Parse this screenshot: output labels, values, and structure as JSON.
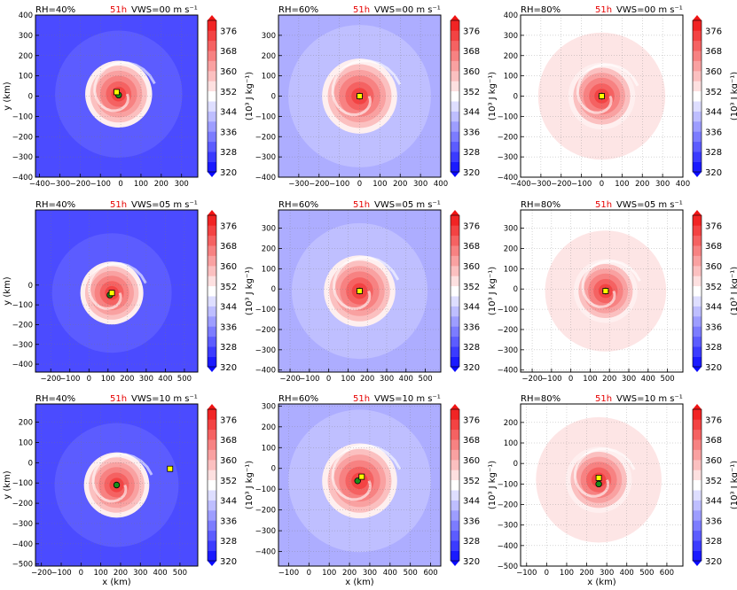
{
  "time_label": "51h",
  "ylabel": "y (km)",
  "xlabel": "x (km)",
  "colorbar": {
    "label": "(10³ J kg⁻¹)",
    "ticks": [
      "376",
      "368",
      "360",
      "352",
      "344",
      "336",
      "328",
      "320"
    ],
    "levels": [
      320,
      324,
      328,
      332,
      336,
      340,
      344,
      348,
      352,
      356,
      360,
      364,
      368,
      372,
      376,
      380
    ]
  },
  "chart_data": [
    {
      "type": "heatmap",
      "rh": "RH=40%",
      "vws": "VWS=00 m s⁻¹",
      "xlim": [
        -420,
        380
      ],
      "ylim": [
        -400,
        400
      ],
      "xticks": [
        "−400",
        "−300",
        "−200",
        "−100",
        "0",
        "100",
        "200",
        "300"
      ],
      "yticks": [
        "400",
        "300",
        "200",
        "100",
        "0",
        "−100",
        "−200",
        "−300",
        "−400"
      ],
      "env_level": 328,
      "core": {
        "x": -10,
        "y": 10,
        "r": 165
      },
      "markers": {
        "green": [
          -10,
          5
        ],
        "yellow": [
          -20,
          20
        ]
      }
    },
    {
      "type": "heatmap",
      "rh": "RH=60%",
      "vws": "VWS=00 m s⁻¹",
      "xlim": [
        -400,
        400
      ],
      "ylim": [
        -400,
        400
      ],
      "xticks": [
        "−300",
        "−200",
        "−100",
        "0",
        "100",
        "200",
        "300",
        "400"
      ],
      "yticks": [
        "300",
        "200",
        "100",
        "0",
        "−100",
        "−200",
        "−300",
        "−400"
      ],
      "env_level": 340,
      "core": {
        "x": 0,
        "y": 0,
        "r": 185
      },
      "markers": {
        "green": [
          0,
          0
        ],
        "yellow": [
          0,
          0
        ]
      }
    },
    {
      "type": "heatmap",
      "rh": "RH=80%",
      "vws": "VWS=00 m s⁻¹",
      "xlim": [
        -400,
        400
      ],
      "ylim": [
        -400,
        400
      ],
      "xticks": [
        "−400",
        "−300",
        "−200",
        "−100",
        "0",
        "100",
        "200",
        "300",
        "400"
      ],
      "yticks": [
        "400",
        "300",
        "200",
        "100",
        "0",
        "−100",
        "−200",
        "−300",
        "−400"
      ],
      "env_level": 352,
      "core": {
        "x": 0,
        "y": 0,
        "r": 165
      },
      "markers": {
        "green": [
          0,
          0
        ],
        "yellow": [
          0,
          0
        ]
      }
    },
    {
      "type": "heatmap",
      "rh": "RH=40%",
      "vws": "VWS=05 m s⁻¹",
      "xlim": [
        -280,
        570
      ],
      "ylim": [
        -440,
        380
      ],
      "xticks": [
        "−200",
        "−100",
        "0",
        "100",
        "200",
        "300",
        "400",
        "500"
      ],
      "yticks": [
        "0",
        "−100",
        "−200",
        "−300",
        "−400"
      ],
      "env_level": 328,
      "core": {
        "x": 120,
        "y": -40,
        "r": 165
      },
      "markers": {
        "green": [
          110,
          -50
        ],
        "yellow": [
          120,
          -40
        ]
      }
    },
    {
      "type": "heatmap",
      "rh": "RH=60%",
      "vws": "VWS=05 m s⁻¹",
      "xlim": [
        -260,
        580
      ],
      "ylim": [
        -410,
        390
      ],
      "xticks": [
        "−200",
        "−100",
        "0",
        "100",
        "200",
        "300",
        "400",
        "500"
      ],
      "yticks": [
        "300",
        "200",
        "100",
        "0",
        "−100",
        "−200",
        "−300",
        "−400"
      ],
      "env_level": 340,
      "core": {
        "x": 160,
        "y": -10,
        "r": 185
      },
      "markers": {
        "green": [
          160,
          -10
        ],
        "yellow": [
          160,
          -10
        ]
      }
    },
    {
      "type": "heatmap",
      "rh": "RH=80%",
      "vws": "VWS=05 m s⁻¹",
      "xlim": [
        -260,
        580
      ],
      "ylim": [
        -410,
        390
      ],
      "xticks": [
        "−200",
        "−100",
        "0",
        "100",
        "200",
        "300",
        "400",
        "500"
      ],
      "yticks": [
        "300",
        "200",
        "100",
        "0",
        "−100",
        "−200",
        "−300",
        "−400"
      ],
      "env_level": 352,
      "core": {
        "x": 180,
        "y": -10,
        "r": 165
      },
      "markers": {
        "green": [
          180,
          -10
        ],
        "yellow": [
          180,
          -10
        ]
      }
    },
    {
      "type": "heatmap",
      "rh": "RH=40%",
      "vws": "VWS=10 m s⁻¹",
      "xlim": [
        -230,
        590
      ],
      "ylim": [
        -510,
        290
      ],
      "xticks": [
        "−200",
        "−100",
        "0",
        "100",
        "200",
        "300",
        "400",
        "500"
      ],
      "yticks": [
        "200",
        "100",
        "0",
        "−100",
        "−200",
        "−300",
        "−400",
        "−500"
      ],
      "env_level": 328,
      "core": {
        "x": 180,
        "y": -110,
        "r": 165
      },
      "markers": {
        "green": [
          180,
          -110
        ],
        "yellow": [
          450,
          -30
        ]
      }
    },
    {
      "type": "heatmap",
      "rh": "RH=60%",
      "vws": "VWS=10 m s⁻¹",
      "xlim": [
        -150,
        650
      ],
      "ylim": [
        -470,
        310
      ],
      "xticks": [
        "−100",
        "0",
        "100",
        "200",
        "300",
        "400",
        "500",
        "600"
      ],
      "yticks": [
        "300",
        "200",
        "100",
        "0",
        "−100",
        "−200",
        "−300",
        "−400"
      ],
      "env_level": 340,
      "core": {
        "x": 250,
        "y": -60,
        "r": 185
      },
      "markers": {
        "green": [
          240,
          -60
        ],
        "yellow": [
          260,
          -40
        ]
      }
    },
    {
      "type": "heatmap",
      "rh": "RH=80%",
      "vws": "VWS=10 m s⁻¹",
      "xlim": [
        -130,
        680
      ],
      "ylim": [
        -500,
        290
      ],
      "xticks": [
        "−100",
        "0",
        "100",
        "200",
        "300",
        "400",
        "500",
        "600"
      ],
      "yticks": [
        "200",
        "100",
        "0",
        "−100",
        "−200",
        "−300",
        "−400",
        "−500"
      ],
      "env_level": 352,
      "core": {
        "x": 260,
        "y": -80,
        "r": 165
      },
      "markers": {
        "green": [
          260,
          -100
        ],
        "yellow": [
          260,
          -70
        ]
      }
    }
  ]
}
